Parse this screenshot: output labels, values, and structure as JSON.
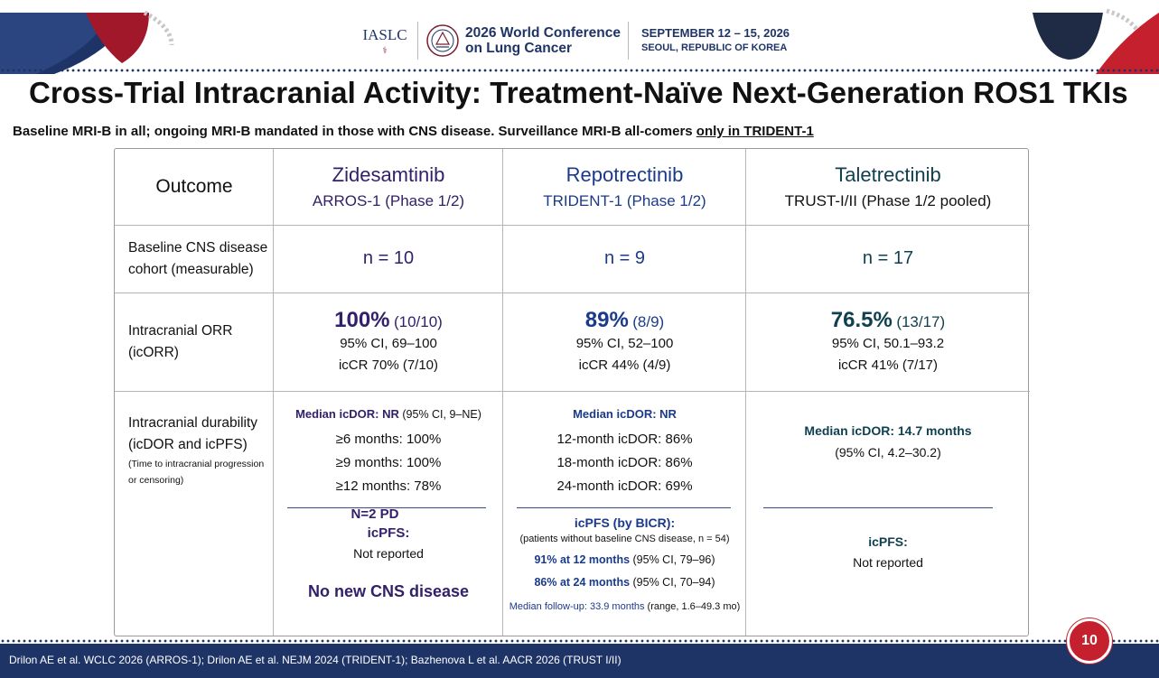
{
  "header": {
    "org": "IASLC",
    "conference_line1": "2026 World Conference",
    "conference_line2": "on Lung Cancer",
    "dates": "SEPTEMBER 12 – 15, 2026",
    "location": "SEOUL, REPUBLIC OF KOREA"
  },
  "title": "Cross-Trial Intracranial Activity: Treatment-Naïve Next-Generation ROS1 TKIs",
  "subtitle": {
    "main": "Baseline MRI-B in all; ongoing MRI-B mandated in those with CNS disease. Surveillance MRI-B all-comers ",
    "underlined": "only in TRIDENT-1"
  },
  "table": {
    "outcome_header": "Outcome",
    "columns": [
      {
        "drug": "Zidesamtinib",
        "trial": "ARROS-1  (Phase 1/2)",
        "color": "#32206b"
      },
      {
        "drug": "Repotrectinib",
        "trial": "TRIDENT-1  (Phase 1/2)",
        "color": "#1a3a8a"
      },
      {
        "drug": "Taletrectinib",
        "trial": "TRUST-I/II  (Phase 1/2 pooled)",
        "color": "#104050"
      }
    ],
    "row_cohort": {
      "label_1": "Baseline CNS disease",
      "label_2": "cohort (measurable)",
      "values": [
        "n = 10",
        "n = 9",
        "n = 17"
      ]
    },
    "row_orr": {
      "label_1": "Intracranial ORR",
      "label_2": "(icORR)",
      "cells": [
        {
          "pct": "100%",
          "frac": "(10/10)",
          "ci": "95% CI, 69–100",
          "cr": "icCR 70% (7/10)"
        },
        {
          "pct": "89%",
          "frac": "(8/9)",
          "ci": "95% CI, 52–100",
          "cr": "icCR 44% (4/9)"
        },
        {
          "pct": "76.5%",
          "frac": "(13/17)",
          "ci": "95% CI, 50.1–93.2",
          "cr": "icCR 41% (7/17)"
        }
      ]
    },
    "row_durability": {
      "label_1": "Intracranial durability",
      "label_2": "(icDOR and icPFS)",
      "note_1": "(Time to intracranial progression",
      "note_2": "or censoring)",
      "zides": {
        "median": "Median icDOR: NR",
        "median_ci": " (95% CI, 9–NE)",
        "l1": "≥6 months: 100%",
        "l2": "≥9 months: 100%",
        "l3": "≥12 months: 78%",
        "pd": "N=2 PD",
        "icpfs": "icPFS:",
        "not_reported": "Not reported",
        "no_new": "No new CNS disease"
      },
      "repo": {
        "median": "Median icDOR: NR",
        "l1": "12-month icDOR:  86%",
        "l2": "18-month icDOR:  86%",
        "l3": "24-month icDOR:  69%",
        "icpfs": "icPFS (by BICR):",
        "icpfs_note": "(patients without baseline CNS disease, n = 54)",
        "m12": "91% at 12 months",
        "m12_ci": " (95% CI, 79–96)",
        "m24": "86% at 24 months",
        "m24_ci": " (95% CI, 70–94)",
        "follow": "Median follow-up: 33.9 months",
        "follow_range": " (range, 1.6–49.3 mo)"
      },
      "tale": {
        "median": "Median icDOR: 14.7 months",
        "median_ci": "(95% CI, 4.2–30.2)",
        "icpfs": "icPFS:",
        "not_reported": "Not reported"
      }
    }
  },
  "footer": {
    "citation": "Drilon AE et al. WCLC 2026 (ARROS-1); Drilon AE et al. NEJM 2024 (TRIDENT-1); Bazhenova L et al. AACR 2026 (TRUST I/II)",
    "page": "10"
  }
}
